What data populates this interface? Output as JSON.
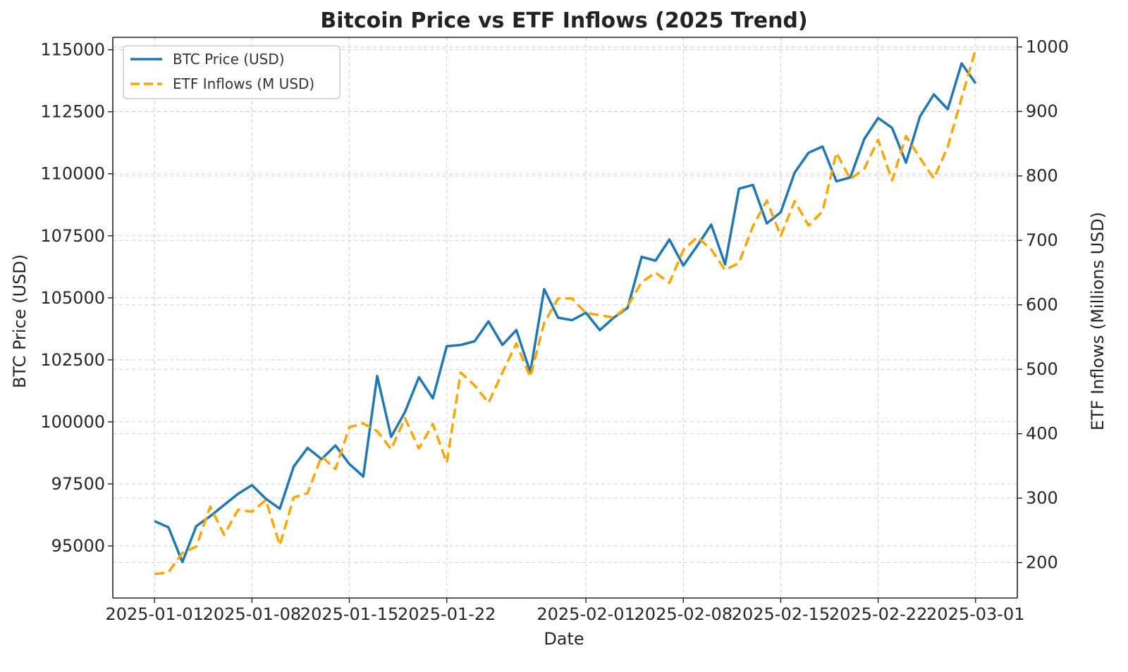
{
  "chart_data": {
    "type": "line",
    "title": "Bitcoin Price vs ETF Inflows (2025 Trend)",
    "xlabel": "Date",
    "ylabel_left": "BTC Price (USD)",
    "ylabel_right": "ETF Inflows (Millions USD)",
    "x_tick_labels": [
      "2025-01-01",
      "2025-01-08",
      "2025-01-15",
      "2025-01-22",
      "2025-02-01",
      "2025-02-08",
      "2025-02-15",
      "2025-02-22",
      "2025-03-01"
    ],
    "y_left_ticks": [
      95000,
      97500,
      100000,
      102500,
      105000,
      107500,
      110000,
      112500,
      115000
    ],
    "y_right_ticks": [
      200,
      300,
      400,
      500,
      600,
      700,
      800,
      900,
      1000
    ],
    "y_left_range": [
      92900,
      115500
    ],
    "y_right_range": [
      145,
      1015
    ],
    "x_range": [
      "2024-12-29",
      "2025-03-04"
    ],
    "grid": true,
    "legend_position": "upper-left",
    "colors": {
      "btc": "#1f77b4",
      "etf": "#ffa500"
    },
    "dates": [
      "2025-01-01",
      "2025-01-02",
      "2025-01-03",
      "2025-01-04",
      "2025-01-05",
      "2025-01-06",
      "2025-01-07",
      "2025-01-08",
      "2025-01-09",
      "2025-01-10",
      "2025-01-11",
      "2025-01-12",
      "2025-01-13",
      "2025-01-14",
      "2025-01-15",
      "2025-01-16",
      "2025-01-17",
      "2025-01-18",
      "2025-01-19",
      "2025-01-20",
      "2025-01-21",
      "2025-01-22",
      "2025-01-23",
      "2025-01-24",
      "2025-01-25",
      "2025-01-26",
      "2025-01-27",
      "2025-01-28",
      "2025-01-29",
      "2025-01-30",
      "2025-01-31",
      "2025-02-01",
      "2025-02-02",
      "2025-02-03",
      "2025-02-04",
      "2025-02-05",
      "2025-02-06",
      "2025-02-07",
      "2025-02-08",
      "2025-02-09",
      "2025-02-10",
      "2025-02-11",
      "2025-02-12",
      "2025-02-13",
      "2025-02-14",
      "2025-02-15",
      "2025-02-16",
      "2025-02-17",
      "2025-02-18",
      "2025-02-19",
      "2025-02-20",
      "2025-02-21",
      "2025-02-22",
      "2025-02-23",
      "2025-02-24",
      "2025-02-25",
      "2025-02-26",
      "2025-02-27",
      "2025-02-28",
      "2025-03-01"
    ],
    "series": [
      {
        "name": "BTC Price (USD)",
        "axis": "left",
        "style": "solid",
        "values": [
          96000,
          95750,
          94350,
          95800,
          96200,
          96650,
          97100,
          97450,
          96900,
          96500,
          98200,
          98950,
          98500,
          99050,
          98300,
          97800,
          101850,
          99400,
          100400,
          101800,
          100950,
          103050,
          103100,
          103250,
          104050,
          103100,
          103700,
          102000,
          105350,
          104200,
          104100,
          104400,
          103700,
          104200,
          104600,
          106650,
          106500,
          107350,
          106300,
          107100,
          107950,
          106350,
          109400,
          109550,
          108000,
          108450,
          110050,
          110850,
          111100,
          109700,
          109850,
          111400,
          112250,
          111850,
          110450,
          112300,
          113200,
          112600,
          114450,
          113650
        ]
      },
      {
        "name": "ETF Inflows (M USD)",
        "axis": "right",
        "style": "dashed",
        "values": [
          182,
          185,
          215,
          225,
          287,
          243,
          282,
          279,
          297,
          227,
          301,
          308,
          365,
          345,
          410,
          416,
          404,
          376,
          424,
          377,
          415,
          355,
          495,
          475,
          448,
          495,
          540,
          488,
          572,
          610,
          610,
          587,
          584,
          580,
          598,
          635,
          650,
          634,
          685,
          705,
          686,
          654,
          665,
          722,
          762,
          707,
          761,
          723,
          745,
          836,
          795,
          811,
          856,
          793,
          862,
          828,
          796,
          845,
          921,
          996
        ]
      }
    ]
  }
}
